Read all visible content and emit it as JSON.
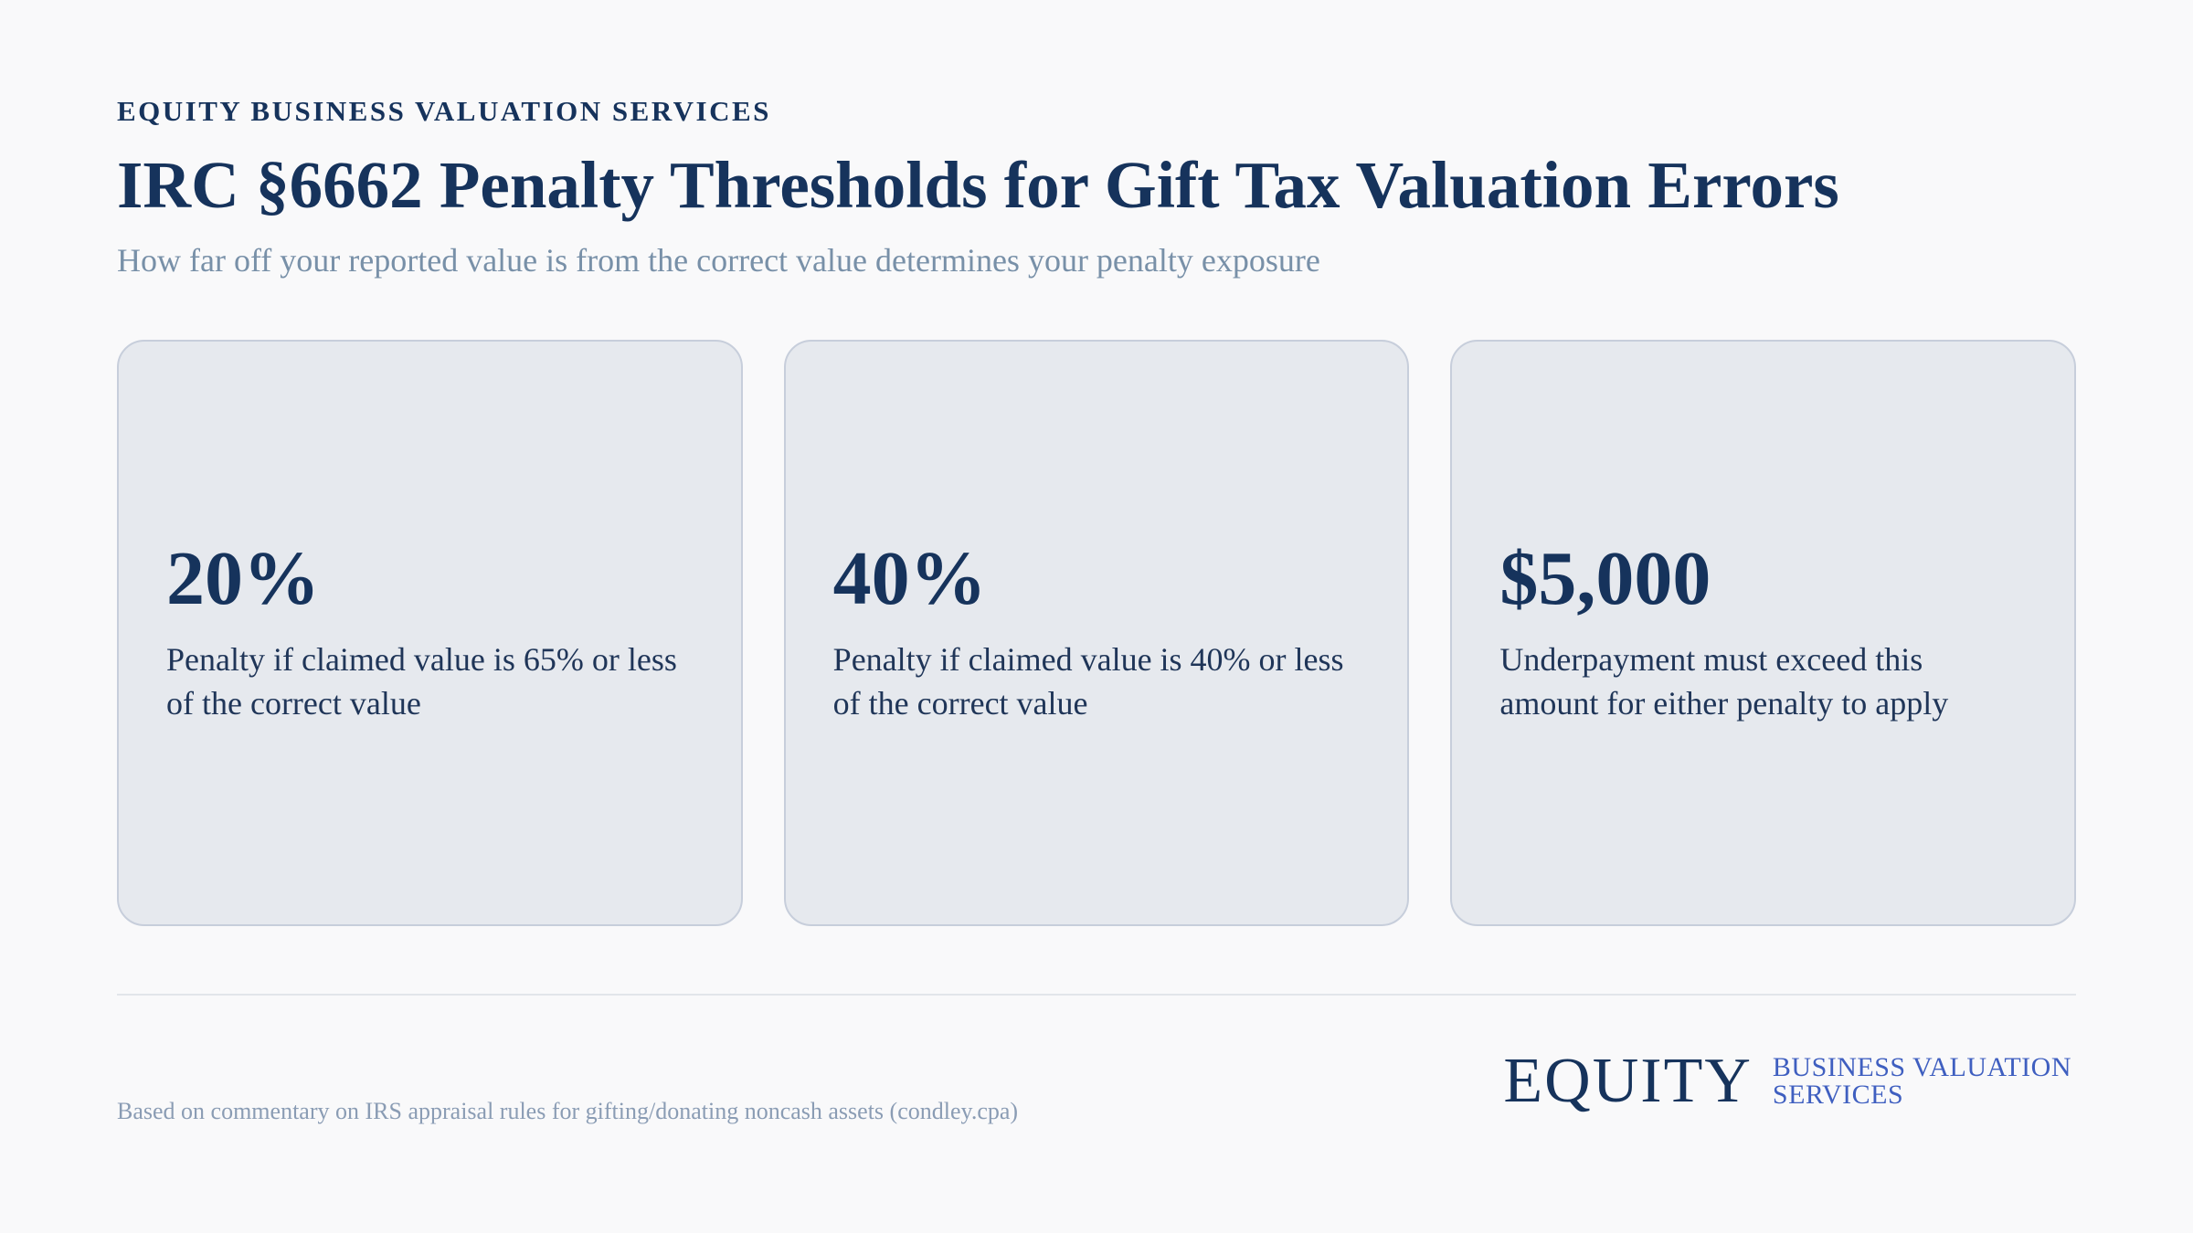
{
  "header": {
    "eyebrow": "EQUITY BUSINESS VALUATION SERVICES",
    "title": "IRC §6662 Penalty Thresholds for Gift Tax Valuation Errors",
    "subtitle": "How far off your reported value is from the correct value determines your penalty exposure"
  },
  "cards": [
    {
      "value": "20%",
      "description": "Penalty if claimed value is 65% or less of the correct value"
    },
    {
      "value": "40%",
      "description": "Penalty if claimed value is 40% or less of the correct value"
    },
    {
      "value": "$5,000",
      "description": "Underpayment must exceed this amount for either penalty to apply"
    }
  ],
  "footer": {
    "source": "Based on commentary on IRS appraisal rules for gifting/donating noncash assets (condley.cpa)",
    "logo": {
      "wordmark": "EQUITY",
      "tagline_line1": "BUSINESS VALUATION",
      "tagline_line2": "SERVICES"
    }
  },
  "colors": {
    "primary": "#16335c",
    "muted": "#7890a8",
    "card_bg": "#e6e9ee",
    "card_border": "#c7cedb",
    "logo_accent": "#3f5fc0"
  }
}
